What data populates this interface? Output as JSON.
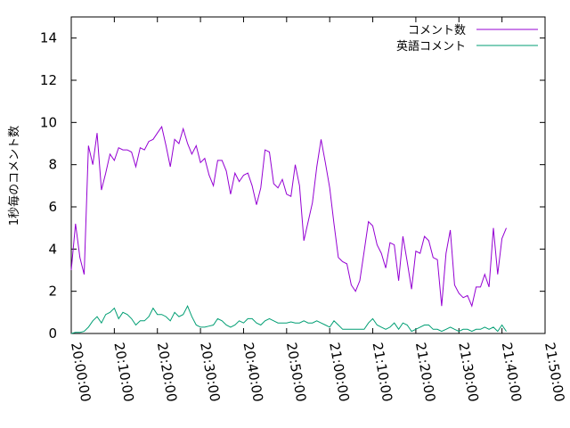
{
  "chart_data": {
    "type": "line",
    "title": "",
    "xlabel": "",
    "ylabel": "1秒毎のコメント数",
    "xlim": [
      "20:00:00",
      "21:50:00"
    ],
    "ylim": [
      0,
      15
    ],
    "yticks": [
      0,
      2,
      4,
      6,
      8,
      10,
      12,
      14
    ],
    "xticks": [
      "20:00:00",
      "20:10:00",
      "20:20:00",
      "20:30:00",
      "20:40:00",
      "20:50:00",
      "21:00:00",
      "21:10:00",
      "21:20:00",
      "21:30:00",
      "21:40:00",
      "21:50:00"
    ],
    "legend_position": "top-right",
    "grid": false,
    "series": [
      {
        "name": "コメント数",
        "color": "#9400d3",
        "points": [
          [
            "20:00:00",
            3.0
          ],
          [
            "20:01:00",
            5.2
          ],
          [
            "20:02:00",
            3.6
          ],
          [
            "20:03:00",
            2.8
          ],
          [
            "20:04:00",
            8.9
          ],
          [
            "20:05:00",
            8.0
          ],
          [
            "20:06:00",
            9.5
          ],
          [
            "20:07:00",
            6.8
          ],
          [
            "20:08:00",
            7.6
          ],
          [
            "20:09:00",
            8.5
          ],
          [
            "20:10:00",
            8.2
          ],
          [
            "20:11:00",
            8.8
          ],
          [
            "20:12:00",
            8.7
          ],
          [
            "20:13:00",
            8.7
          ],
          [
            "20:14:00",
            8.6
          ],
          [
            "20:15:00",
            7.9
          ],
          [
            "20:16:00",
            8.8
          ],
          [
            "20:17:00",
            8.7
          ],
          [
            "20:18:00",
            9.1
          ],
          [
            "20:19:00",
            9.2
          ],
          [
            "20:20:00",
            9.5
          ],
          [
            "20:21:00",
            9.8
          ],
          [
            "20:22:00",
            8.9
          ],
          [
            "20:23:00",
            7.9
          ],
          [
            "20:24:00",
            9.2
          ],
          [
            "20:25:00",
            9.0
          ],
          [
            "20:26:00",
            9.7
          ],
          [
            "20:27:00",
            9.0
          ],
          [
            "20:28:00",
            8.5
          ],
          [
            "20:29:00",
            8.9
          ],
          [
            "20:30:00",
            8.1
          ],
          [
            "20:31:00",
            8.3
          ],
          [
            "20:32:00",
            7.5
          ],
          [
            "20:33:00",
            7.0
          ],
          [
            "20:34:00",
            8.2
          ],
          [
            "20:35:00",
            8.2
          ],
          [
            "20:36:00",
            7.7
          ],
          [
            "20:37:00",
            6.6
          ],
          [
            "20:38:00",
            7.6
          ],
          [
            "20:39:00",
            7.2
          ],
          [
            "20:40:00",
            7.5
          ],
          [
            "20:41:00",
            7.6
          ],
          [
            "20:42:00",
            7.0
          ],
          [
            "20:43:00",
            6.1
          ],
          [
            "20:44:00",
            6.9
          ],
          [
            "20:45:00",
            8.7
          ],
          [
            "20:46:00",
            8.6
          ],
          [
            "20:47:00",
            7.1
          ],
          [
            "20:48:00",
            6.9
          ],
          [
            "20:49:00",
            7.3
          ],
          [
            "20:50:00",
            6.6
          ],
          [
            "20:51:00",
            6.5
          ],
          [
            "20:52:00",
            8.0
          ],
          [
            "20:53:00",
            7.0
          ],
          [
            "20:54:00",
            4.4
          ],
          [
            "20:55:00",
            5.3
          ],
          [
            "20:56:00",
            6.2
          ],
          [
            "20:57:00",
            7.9
          ],
          [
            "20:58:00",
            9.2
          ],
          [
            "20:59:00",
            8.1
          ],
          [
            "21:00:00",
            6.9
          ],
          [
            "21:01:00",
            5.2
          ],
          [
            "21:02:00",
            3.6
          ],
          [
            "21:03:00",
            3.4
          ],
          [
            "21:04:00",
            3.3
          ],
          [
            "21:05:00",
            2.3
          ],
          [
            "21:06:00",
            2.0
          ],
          [
            "21:07:00",
            2.5
          ],
          [
            "21:08:00",
            3.9
          ],
          [
            "21:09:00",
            5.3
          ],
          [
            "21:10:00",
            5.1
          ],
          [
            "21:11:00",
            4.2
          ],
          [
            "21:12:00",
            3.8
          ],
          [
            "21:13:00",
            3.1
          ],
          [
            "21:14:00",
            4.3
          ],
          [
            "21:15:00",
            4.2
          ],
          [
            "21:16:00",
            2.5
          ],
          [
            "21:17:00",
            4.6
          ],
          [
            "21:18:00",
            3.4
          ],
          [
            "21:19:00",
            2.1
          ],
          [
            "21:20:00",
            3.9
          ],
          [
            "21:21:00",
            3.8
          ],
          [
            "21:22:00",
            4.6
          ],
          [
            "21:23:00",
            4.4
          ],
          [
            "21:24:00",
            3.6
          ],
          [
            "21:25:00",
            3.5
          ],
          [
            "21:26:00",
            1.3
          ],
          [
            "21:27:00",
            3.8
          ],
          [
            "21:28:00",
            4.9
          ],
          [
            "21:29:00",
            2.3
          ],
          [
            "21:30:00",
            1.9
          ],
          [
            "21:31:00",
            1.7
          ],
          [
            "21:32:00",
            1.8
          ],
          [
            "21:33:00",
            1.3
          ],
          [
            "21:34:00",
            2.2
          ],
          [
            "21:35:00",
            2.2
          ],
          [
            "21:36:00",
            2.8
          ],
          [
            "21:37:00",
            2.2
          ],
          [
            "21:38:00",
            5.0
          ],
          [
            "21:39:00",
            2.8
          ],
          [
            "21:40:00",
            4.5
          ],
          [
            "21:41:00",
            5.0
          ]
        ]
      },
      {
        "name": "英語コメント",
        "color": "#009e73",
        "points": [
          [
            "20:00:00",
            0.0
          ],
          [
            "20:01:00",
            0.05
          ],
          [
            "20:02:00",
            0.05
          ],
          [
            "20:03:00",
            0.1
          ],
          [
            "20:04:00",
            0.3
          ],
          [
            "20:05:00",
            0.6
          ],
          [
            "20:06:00",
            0.8
          ],
          [
            "20:07:00",
            0.5
          ],
          [
            "20:08:00",
            0.9
          ],
          [
            "20:09:00",
            1.0
          ],
          [
            "20:10:00",
            1.2
          ],
          [
            "20:11:00",
            0.7
          ],
          [
            "20:12:00",
            1.0
          ],
          [
            "20:13:00",
            0.9
          ],
          [
            "20:14:00",
            0.7
          ],
          [
            "20:15:00",
            0.4
          ],
          [
            "20:16:00",
            0.6
          ],
          [
            "20:17:00",
            0.6
          ],
          [
            "20:18:00",
            0.8
          ],
          [
            "20:19:00",
            1.2
          ],
          [
            "20:20:00",
            0.9
          ],
          [
            "20:21:00",
            0.9
          ],
          [
            "20:22:00",
            0.8
          ],
          [
            "20:23:00",
            0.6
          ],
          [
            "20:24:00",
            1.0
          ],
          [
            "20:25:00",
            0.8
          ],
          [
            "20:26:00",
            0.9
          ],
          [
            "20:27:00",
            1.3
          ],
          [
            "20:28:00",
            0.8
          ],
          [
            "20:29:00",
            0.4
          ],
          [
            "20:30:00",
            0.3
          ],
          [
            "20:31:00",
            0.3
          ],
          [
            "20:32:00",
            0.35
          ],
          [
            "20:33:00",
            0.4
          ],
          [
            "20:34:00",
            0.7
          ],
          [
            "20:35:00",
            0.6
          ],
          [
            "20:36:00",
            0.4
          ],
          [
            "20:37:00",
            0.3
          ],
          [
            "20:38:00",
            0.4
          ],
          [
            "20:39:00",
            0.6
          ],
          [
            "20:40:00",
            0.5
          ],
          [
            "20:41:00",
            0.7
          ],
          [
            "20:42:00",
            0.7
          ],
          [
            "20:43:00",
            0.5
          ],
          [
            "20:44:00",
            0.4
          ],
          [
            "20:45:00",
            0.6
          ],
          [
            "20:46:00",
            0.7
          ],
          [
            "20:47:00",
            0.6
          ],
          [
            "20:48:00",
            0.5
          ],
          [
            "20:49:00",
            0.5
          ],
          [
            "20:50:00",
            0.5
          ],
          [
            "20:51:00",
            0.55
          ],
          [
            "20:52:00",
            0.5
          ],
          [
            "20:53:00",
            0.5
          ],
          [
            "20:54:00",
            0.6
          ],
          [
            "20:55:00",
            0.5
          ],
          [
            "20:56:00",
            0.5
          ],
          [
            "20:57:00",
            0.6
          ],
          [
            "20:58:00",
            0.5
          ],
          [
            "20:59:00",
            0.4
          ],
          [
            "21:00:00",
            0.3
          ],
          [
            "21:01:00",
            0.6
          ],
          [
            "21:02:00",
            0.4
          ],
          [
            "21:03:00",
            0.2
          ],
          [
            "21:04:00",
            0.2
          ],
          [
            "21:05:00",
            0.2
          ],
          [
            "21:06:00",
            0.2
          ],
          [
            "21:07:00",
            0.2
          ],
          [
            "21:08:00",
            0.2
          ],
          [
            "21:09:00",
            0.5
          ],
          [
            "21:10:00",
            0.7
          ],
          [
            "21:11:00",
            0.4
          ],
          [
            "21:12:00",
            0.3
          ],
          [
            "21:13:00",
            0.2
          ],
          [
            "21:14:00",
            0.3
          ],
          [
            "21:15:00",
            0.5
          ],
          [
            "21:16:00",
            0.2
          ],
          [
            "21:17:00",
            0.5
          ],
          [
            "21:18:00",
            0.4
          ],
          [
            "21:19:00",
            0.1
          ],
          [
            "21:20:00",
            0.2
          ],
          [
            "21:21:00",
            0.3
          ],
          [
            "21:22:00",
            0.4
          ],
          [
            "21:23:00",
            0.4
          ],
          [
            "21:24:00",
            0.2
          ],
          [
            "21:25:00",
            0.2
          ],
          [
            "21:26:00",
            0.1
          ],
          [
            "21:27:00",
            0.2
          ],
          [
            "21:28:00",
            0.3
          ],
          [
            "21:29:00",
            0.2
          ],
          [
            "21:30:00",
            0.1
          ],
          [
            "21:31:00",
            0.2
          ],
          [
            "21:32:00",
            0.2
          ],
          [
            "21:33:00",
            0.1
          ],
          [
            "21:34:00",
            0.2
          ],
          [
            "21:35:00",
            0.2
          ],
          [
            "21:36:00",
            0.3
          ],
          [
            "21:37:00",
            0.2
          ],
          [
            "21:38:00",
            0.3
          ],
          [
            "21:39:00",
            0.1
          ],
          [
            "21:40:00",
            0.4
          ],
          [
            "21:41:00",
            0.1
          ]
        ]
      }
    ]
  }
}
